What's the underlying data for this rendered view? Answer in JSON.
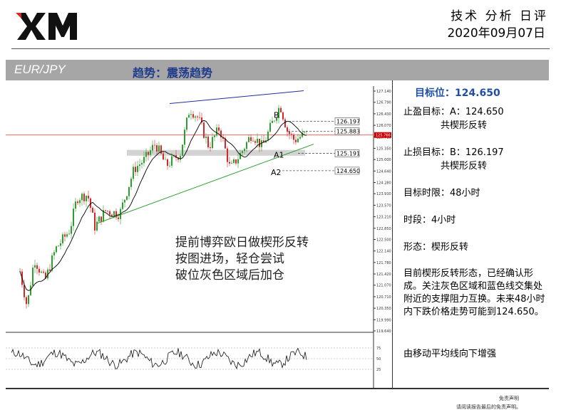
{
  "header": {
    "logo_text": "XM",
    "title": "技术 分析 日评",
    "date": "2020年09月07日"
  },
  "band": {
    "pair": "EUR/JPY",
    "trend": "趋势：震荡趋势"
  },
  "panel": {
    "target": "目标位：124.650",
    "take_profit_line1": "止盈目标：A：124.650",
    "take_profit_line2": "共楔形反转",
    "stop_loss_line1": "止损目标：B：126.197",
    "stop_loss_line2": "共楔形反转",
    "time_limit": "目标时限：48小时",
    "timeframe": "时段：4小时",
    "pattern": "形态：楔形反转",
    "analysis": "目前楔形反转形态，已经确认形成。关注灰色区域和蓝色线交集处附近的支撑阻力互换。未来48小时内下跌价格走势可能到124.650。",
    "ma_note": "由移动平均线向下增强"
  },
  "overlay": {
    "line1": "提前博弈欧日做楔形反转",
    "line2": "按图进场，轻仓尝试",
    "line3": "破位灰色区域后加仓"
  },
  "footer": {
    "disclaimer_title": "免责声明",
    "disclaimer_text": "请阅读报告最后的免责声明。"
  },
  "chart_data": {
    "type": "candlestick",
    "price_axis_ticks": [
      "127.140",
      "126.790",
      "126.430",
      "126.070",
      "125.710",
      "125.350",
      "125.000",
      "124.640",
      "124.280",
      "123.930",
      "123.570",
      "123.210",
      "122.850",
      "122.500",
      "122.140",
      "121.780",
      "121.420",
      "121.070",
      "120.710",
      "120.350",
      "119.990",
      "119.640"
    ],
    "current_price_label": "125.766",
    "levels": [
      {
        "label": "B",
        "value": "126.197"
      },
      {
        "label": "",
        "value": "125.883"
      },
      {
        "label": "A1",
        "value": "125.191"
      },
      {
        "label": "A2",
        "value": "124.650"
      }
    ],
    "oscillator_ticks": [
      "75",
      "50",
      "25"
    ],
    "colors": {
      "up": "#2ca02c",
      "down": "#d62728",
      "resistance": "#1f2fa0",
      "support": "#2e9e2e",
      "ma": "#000000",
      "price_line": "#e03030"
    }
  }
}
